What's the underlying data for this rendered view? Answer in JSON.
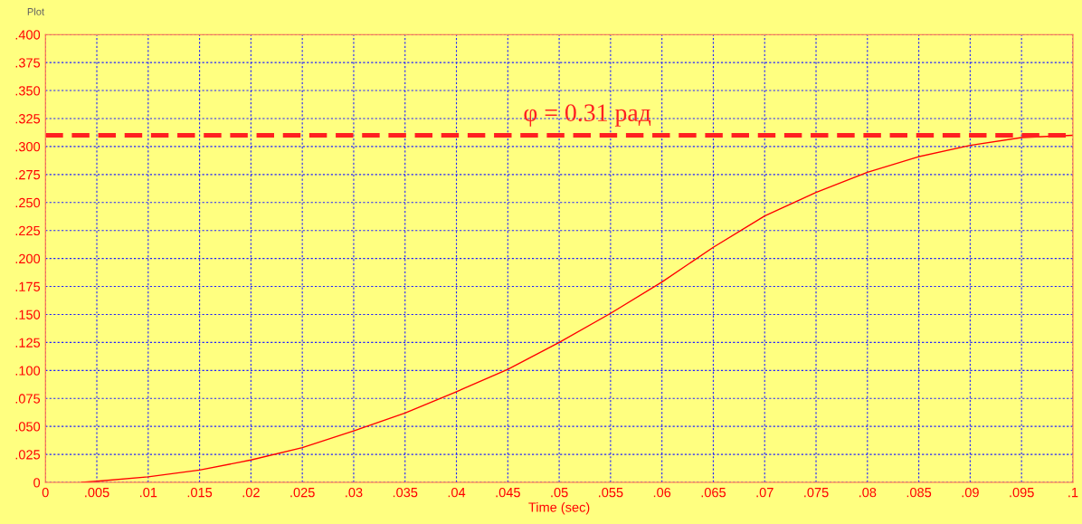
{
  "chart_data": {
    "type": "line",
    "title": "Plot",
    "xlabel": "Time (sec)",
    "x": [
      0.0035,
      0.005,
      0.01,
      0.015,
      0.02,
      0.025,
      0.03,
      0.035,
      0.04,
      0.045,
      0.05,
      0.055,
      0.06,
      0.065,
      0.07,
      0.075,
      0.08,
      0.085,
      0.09,
      0.095,
      0.1
    ],
    "series": [
      {
        "color": "#ff0000",
        "values": [
          0,
          0.001,
          0.005,
          0.011,
          0.02,
          0.031,
          0.046,
          0.062,
          0.081,
          0.101,
          0.125,
          0.151,
          0.179,
          0.21,
          0.238,
          0.259,
          0.277,
          0.291,
          0.301,
          0.308,
          0.31
        ]
      }
    ],
    "xlim": [
      0,
      0.1
    ],
    "ylim": [
      0,
      0.4
    ],
    "xticks": [
      0,
      {
        "value": 0.005,
        "label": ".005"
      },
      {
        "value": 0.01,
        "label": ".01"
      },
      {
        "value": 0.015,
        "label": ".015"
      },
      {
        "value": 0.02,
        "label": ".02"
      },
      {
        "value": 0.025,
        "label": ".025"
      },
      {
        "value": 0.03,
        "label": ".03"
      },
      {
        "value": 0.035,
        "label": ".035"
      },
      {
        "value": 0.04,
        "label": ".04"
      },
      {
        "value": 0.045,
        "label": ".045"
      },
      {
        "value": 0.05,
        "label": ".05"
      },
      {
        "value": 0.055,
        "label": ".055"
      },
      {
        "value": 0.06,
        "label": ".06"
      },
      {
        "value": 0.065,
        "label": ".065"
      },
      {
        "value": 0.07,
        "label": ".07"
      },
      {
        "value": 0.075,
        "label": ".075"
      },
      {
        "value": 0.08,
        "label": ".08"
      },
      {
        "value": 0.085,
        "label": ".085"
      },
      {
        "value": 0.09,
        "label": ".09"
      },
      {
        "value": 0.095,
        "label": ".095"
      },
      {
        "value": 0.1,
        "label": ".1"
      }
    ],
    "yticks": [
      0,
      {
        "value": 0.025,
        "label": ".025"
      },
      {
        "value": 0.05,
        "label": ".050"
      },
      {
        "value": 0.075,
        "label": ".075"
      },
      {
        "value": 0.1,
        "label": ".100"
      },
      {
        "value": 0.125,
        "label": ".125"
      },
      {
        "value": 0.15,
        "label": ".150"
      },
      {
        "value": 0.175,
        "label": ".175"
      },
      {
        "value": 0.2,
        "label": ".200"
      },
      {
        "value": 0.225,
        "label": ".225"
      },
      {
        "value": 0.25,
        "label": ".250"
      },
      {
        "value": 0.275,
        "label": ".275"
      },
      {
        "value": 0.3,
        "label": ".300"
      },
      {
        "value": 0.325,
        "label": ".325"
      },
      {
        "value": 0.35,
        "label": ".350"
      },
      {
        "value": 0.375,
        "label": ".375"
      },
      {
        "value": 0.4,
        "label": ".400"
      }
    ],
    "ref_lines": [
      {
        "axis": "y",
        "value": 0.31,
        "label": "φ = 0.31 рад",
        "color": "#ff2020",
        "line_style": "dashed"
      }
    ],
    "grid": true,
    "line_style": "solid",
    "marker": "none",
    "legend": false
  }
}
